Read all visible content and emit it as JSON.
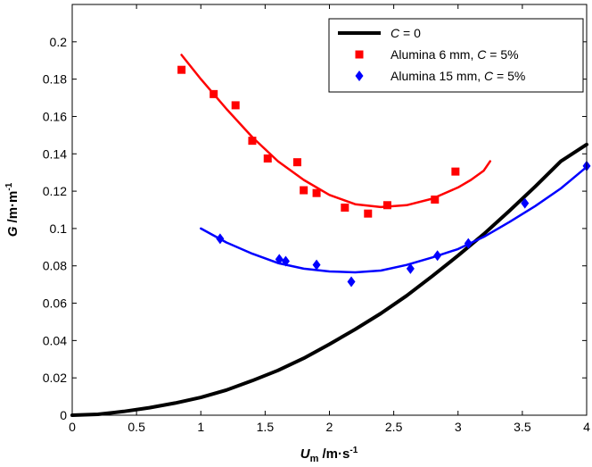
{
  "chart_data": {
    "type": "scatter",
    "xlabel": {
      "main": "U",
      "sub": "m",
      "units": "/m·s",
      "exp": "-1"
    },
    "ylabel": {
      "main": "G",
      "units": "/m·m",
      "exp": "-1"
    },
    "xlim": [
      0,
      4
    ],
    "ylim": [
      0,
      0.22
    ],
    "xticks": [
      0,
      0.5,
      1,
      1.5,
      2,
      2.5,
      3,
      3.5,
      4
    ],
    "xtick_labels": [
      "0",
      "0.5",
      "1",
      "1.5",
      "2",
      "2.5",
      "3",
      "3.5",
      "4"
    ],
    "yticks": [
      0,
      0.02,
      0.04,
      0.06,
      0.08,
      0.1,
      0.12,
      0.14,
      0.16,
      0.18,
      0.2
    ],
    "ytick_labels": [
      "0",
      "0.02",
      "0.04",
      "0.06",
      "0.08",
      "0.1",
      "0.12",
      "0.14",
      "0.16",
      "0.18",
      "0.2"
    ],
    "grid": false,
    "legend_position": "top-right",
    "legend": [
      {
        "parts": [
          {
            "t": "C",
            "i": true
          },
          {
            "t": " = 0",
            "i": false
          }
        ]
      },
      {
        "parts": [
          {
            "t": "Alumina 6 mm, ",
            "i": false
          },
          {
            "t": "C",
            "i": true
          },
          {
            "t": " = 5%",
            "i": false
          }
        ]
      },
      {
        "parts": [
          {
            "t": "Alumina 15 mm, ",
            "i": false
          },
          {
            "t": "C",
            "i": true
          },
          {
            "t": " = 5%",
            "i": false
          }
        ]
      }
    ],
    "series": [
      {
        "kind": "line",
        "color": "#000000",
        "x": [
          0,
          0.2,
          0.4,
          0.6,
          0.8,
          1.0,
          1.2,
          1.4,
          1.6,
          1.8,
          2.0,
          2.2,
          2.4,
          2.6,
          2.8,
          3.0,
          3.2,
          3.4,
          3.6,
          3.8,
          4.0
        ],
        "y": [
          0,
          0.0005,
          0.002,
          0.004,
          0.0065,
          0.0095,
          0.0135,
          0.0185,
          0.024,
          0.0305,
          0.038,
          0.046,
          0.0545,
          0.064,
          0.0745,
          0.0855,
          0.097,
          0.1095,
          0.1225,
          0.136,
          0.145
        ]
      },
      {
        "kind": "line",
        "color": "#ff0000",
        "x": [
          0.85,
          1.0,
          1.2,
          1.4,
          1.6,
          1.8,
          2.0,
          2.2,
          2.4,
          2.6,
          2.8,
          3.0,
          3.1,
          3.2,
          3.25
        ],
        "y": [
          0.193,
          0.18,
          0.164,
          0.149,
          0.136,
          0.126,
          0.118,
          0.113,
          0.1115,
          0.1125,
          0.116,
          0.122,
          0.126,
          0.131,
          0.136
        ]
      },
      {
        "kind": "points",
        "name": "Alumina 6 mm, C = 5%",
        "color": "#ff0000",
        "marker": "square",
        "x": [
          0.85,
          1.1,
          1.27,
          1.4,
          1.52,
          1.75,
          1.8,
          1.9,
          2.12,
          2.3,
          2.45,
          2.82,
          2.98
        ],
        "y": [
          0.185,
          0.172,
          0.166,
          0.147,
          0.1375,
          0.1355,
          0.1205,
          0.119,
          0.1112,
          0.108,
          0.1125,
          0.1155,
          0.1305
        ]
      },
      {
        "kind": "line",
        "color": "#0000ff",
        "x": [
          1.0,
          1.2,
          1.4,
          1.6,
          1.8,
          2.0,
          2.2,
          2.4,
          2.6,
          2.8,
          3.0,
          3.2,
          3.4,
          3.6,
          3.8,
          4.0
        ],
        "y": [
          0.1,
          0.0925,
          0.0865,
          0.0815,
          0.0785,
          0.077,
          0.0765,
          0.0775,
          0.0805,
          0.0845,
          0.089,
          0.0955,
          0.1035,
          0.112,
          0.1215,
          0.133
        ]
      },
      {
        "kind": "points",
        "name": "Alumina 15 mm, C = 5%",
        "color": "#0000ff",
        "marker": "diamond",
        "x": [
          1.15,
          1.61,
          1.66,
          1.9,
          2.17,
          2.63,
          2.84,
          3.08,
          3.52,
          4.0
        ],
        "y": [
          0.0945,
          0.0835,
          0.0825,
          0.0805,
          0.0715,
          0.0785,
          0.0855,
          0.092,
          0.1135,
          0.1335
        ]
      }
    ]
  }
}
